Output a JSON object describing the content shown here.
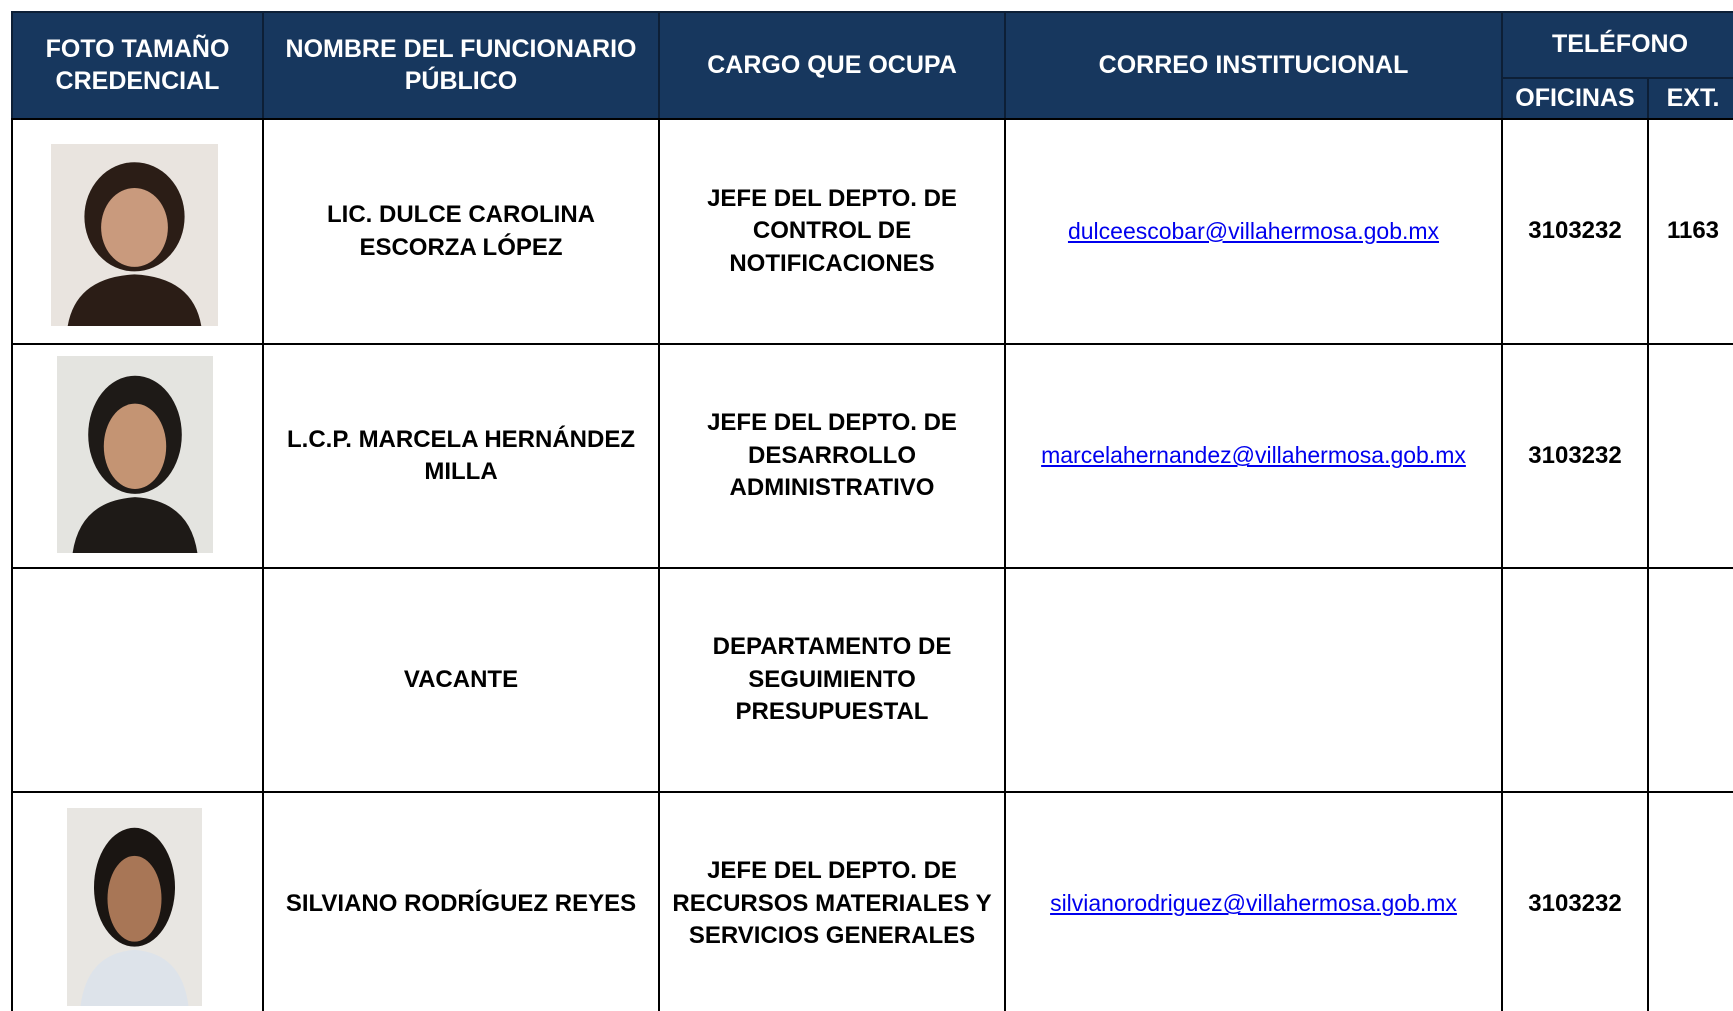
{
  "table": {
    "header": {
      "foto": "FOTO TAMAÑO CREDENCIAL",
      "nombre": "NOMBRE DEL FUNCIONARIO PÚBLICO",
      "cargo": "CARGO QUE OCUPA",
      "correo": "CORREO INSTITUCIONAL",
      "telefono": "TELÉFONO",
      "oficinas": "OFICINAS",
      "ext": "EXT."
    },
    "rows": [
      {
        "nombre": "LIC. DULCE CAROLINA ESCORZA LÓPEZ",
        "cargo": "JEFE DEL DEPTO. DE CONTROL DE NOTIFICACIONES",
        "correo": "dulceescobar@villahermosa.gob.mx",
        "oficinas": "3103232",
        "ext": "1163"
      },
      {
        "nombre": "L.C.P. MARCELA HERNÁNDEZ MILLA",
        "cargo": "JEFE DEL DEPTO. DE DESARROLLO ADMINISTRATIVO",
        "correo": "marcelahernandez@villahermosa.gob.mx",
        "oficinas": "3103232"
      },
      {
        "nombre": "VACANTE",
        "cargo": "DEPARTAMENTO DE SEGUIMIENTO PRESUPUESTAL"
      },
      {
        "nombre": "SILVIANO RODRÍGUEZ REYES",
        "cargo": "JEFE DEL DEPTO. DE RECURSOS MATERIALES Y SERVICIOS GENERALES",
        "correo": "silvianorodriguez@villahermosa.gob.mx",
        "oficinas": "3103232"
      }
    ]
  }
}
